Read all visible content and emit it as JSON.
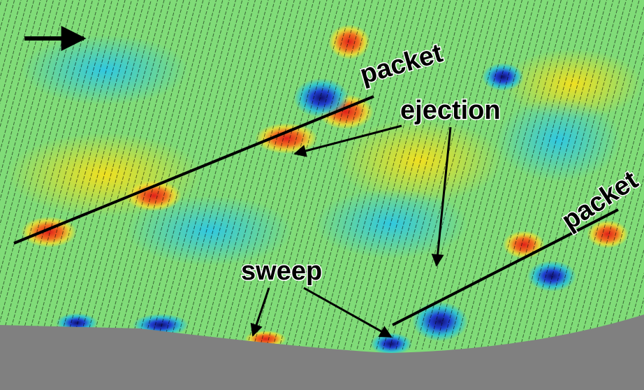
{
  "annotations": [
    {
      "label": "packet"
    },
    {
      "label": "ejection"
    },
    {
      "label": "packet"
    },
    {
      "label": "sweep"
    }
  ]
}
